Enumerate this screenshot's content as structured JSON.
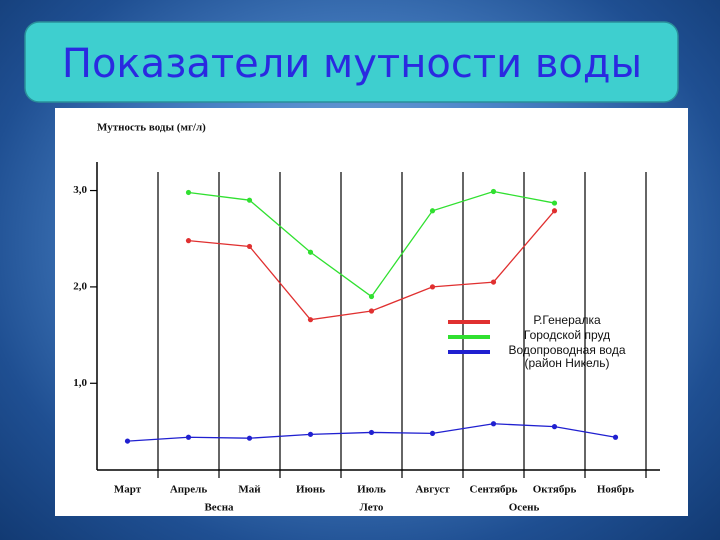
{
  "chart_data": {
    "type": "line",
    "title": "Показатели мутности воды",
    "ylabel": "Мутность воды (мг/л)",
    "categories": [
      "Март",
      "Апрель",
      "Май",
      "Июнь",
      "Июль",
      "Август",
      "Сентябрь",
      "Октябрь",
      "Ноябрь"
    ],
    "groups": [
      "Весна",
      "Лето",
      "Осень"
    ],
    "series": [
      {
        "name": "Р.Генералка",
        "color": "#e03030",
        "values": [
          null,
          2.48,
          2.42,
          1.66,
          1.75,
          2.0,
          2.05,
          2.79,
          null
        ]
      },
      {
        "name": "Городской пруд",
        "color": "#30e030",
        "values": [
          null,
          2.98,
          2.9,
          2.36,
          1.9,
          2.79,
          2.99,
          2.87,
          null
        ]
      },
      {
        "name": "Водопроводная вода (район Никель)",
        "color": "#2020d0",
        "values": [
          0.4,
          0.44,
          0.43,
          0.47,
          0.49,
          0.48,
          0.58,
          0.55,
          0.44
        ]
      }
    ],
    "ylim": [
      0.1,
      3.4
    ],
    "yticks": [
      {
        "value": 1,
        "label": "1,0"
      },
      {
        "value": 2,
        "label": "2,0"
      },
      {
        "value": 3,
        "label": "3,0"
      }
    ],
    "grid": false,
    "legend": "right"
  }
}
